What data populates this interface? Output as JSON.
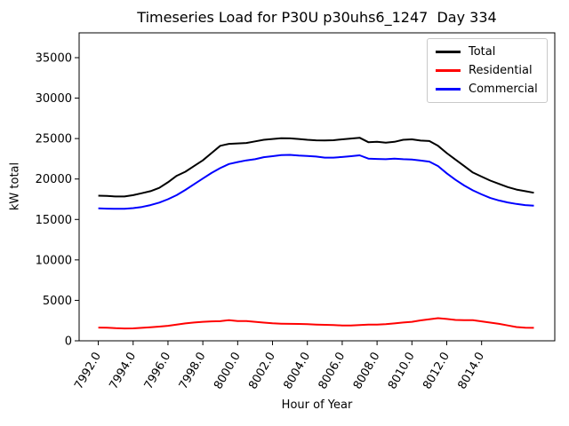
{
  "chart_data": {
    "type": "line",
    "title": "Timeseries Load for P30U p30uhs6_1247  Day 334",
    "xlabel": "Hour of Year",
    "ylabel": "kW total",
    "xlim": [
      7990.9,
      8018.2
    ],
    "ylim": [
      0,
      38070
    ],
    "grid": false,
    "legend_position": "upper right",
    "line_width": 2,
    "x_tick_rotation": 60,
    "x_ticks": [
      7992,
      7994,
      7996,
      7998,
      8000,
      8002,
      8004,
      8006,
      8008,
      8010,
      8012,
      8014
    ],
    "x_tick_labels": [
      "7992.0",
      "7994.0",
      "7996.0",
      "7998.0",
      "8000.0",
      "8002.0",
      "8004.0",
      "8006.0",
      "8008.0",
      "8010.0",
      "8012.0",
      "8014.0"
    ],
    "y_ticks": [
      0,
      5000,
      10000,
      15000,
      20000,
      25000,
      30000,
      35000
    ],
    "y_tick_labels": [
      "0",
      "5000",
      "10000",
      "15000",
      "20000",
      "25000",
      "30000",
      "35000"
    ],
    "x": [
      7992,
      7992.5,
      7993,
      7993.5,
      7994,
      7994.5,
      7995,
      7995.5,
      7996,
      7996.5,
      7997,
      7997.5,
      7998,
      7998.5,
      7999,
      7999.5,
      8000,
      8000.5,
      8001,
      8001.5,
      8002,
      8002.5,
      8003,
      8003.5,
      8004,
      8004.5,
      8005,
      8005.5,
      8006,
      8006.5,
      8007,
      8007.5,
      8008,
      8008.5,
      8009,
      8009.5,
      8010,
      8010.5,
      8011,
      8011.5,
      8012,
      8012.5,
      8013,
      8013.5,
      8014,
      8014.5,
      8015,
      8015.5,
      8016,
      8016.5,
      8017
    ],
    "series": [
      {
        "name": "Total",
        "color": "#000000",
        "values": [
          17940,
          17900,
          17840,
          17840,
          18000,
          18250,
          18500,
          18900,
          19600,
          20400,
          20900,
          21600,
          22300,
          23200,
          24100,
          24350,
          24400,
          24450,
          24650,
          24850,
          24950,
          25050,
          25030,
          24950,
          24850,
          24780,
          24760,
          24800,
          24900,
          25000,
          25100,
          24550,
          24600,
          24500,
          24600,
          24850,
          24900,
          24750,
          24700,
          24100,
          23200,
          22400,
          21600,
          20800,
          20300,
          19800,
          19400,
          19000,
          18700,
          18500,
          18300
        ]
      },
      {
        "name": "Residential",
        "color": "#ff0000",
        "values": [
          1640,
          1620,
          1560,
          1520,
          1540,
          1600,
          1680,
          1760,
          1850,
          2000,
          2150,
          2260,
          2350,
          2400,
          2430,
          2560,
          2450,
          2440,
          2350,
          2250,
          2160,
          2120,
          2100,
          2090,
          2050,
          2010,
          1980,
          1940,
          1900,
          1890,
          1950,
          2000,
          2010,
          2060,
          2150,
          2260,
          2350,
          2520,
          2650,
          2800,
          2700,
          2580,
          2560,
          2550,
          2400,
          2250,
          2100,
          1900,
          1700,
          1620,
          1600
        ]
      },
      {
        "name": "Commercial",
        "color": "#0000ff",
        "values": [
          16370,
          16340,
          16310,
          16320,
          16400,
          16550,
          16780,
          17080,
          17500,
          18000,
          18650,
          19350,
          20050,
          20750,
          21350,
          21850,
          22100,
          22300,
          22450,
          22700,
          22820,
          22950,
          22990,
          22900,
          22850,
          22780,
          22650,
          22650,
          22720,
          22820,
          22930,
          22520,
          22480,
          22450,
          22520,
          22450,
          22400,
          22280,
          22150,
          21600,
          20700,
          19900,
          19200,
          18600,
          18100,
          17650,
          17350,
          17100,
          16920,
          16780,
          16700
        ]
      }
    ]
  }
}
